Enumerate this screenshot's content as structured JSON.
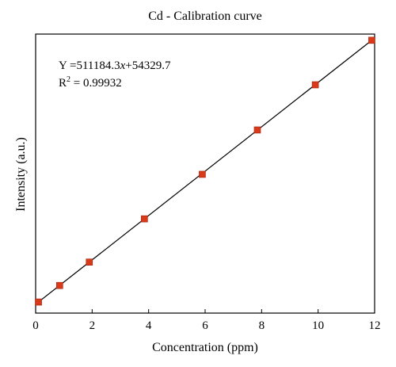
{
  "chart_data": {
    "type": "scatter",
    "title": "Cd - Calibration curve",
    "xlabel": "Concentration (ppm)",
    "ylabel": "Intensity (a.u.)",
    "xlim": [
      0,
      12
    ],
    "xticks": [
      "0",
      "2",
      "4",
      "6",
      "8",
      "10",
      "12"
    ],
    "x_tick_values": [
      0,
      2,
      4,
      6,
      8,
      10,
      12
    ],
    "y_tick_labels_shown": false,
    "grid": false,
    "series": [
      {
        "marker": "square",
        "color": "#d93a1a",
        "x": [
          0.1,
          0.85,
          1.9,
          3.85,
          5.9,
          7.85,
          9.9,
          11.9
        ],
        "y": [
          105000,
          486000,
          1025000,
          2022000,
          3048000,
          4070000,
          5111000,
          6137000
        ]
      }
    ],
    "fit_line": {
      "slope": 511184.3,
      "intercept": 54329.7,
      "x_range": [
        0,
        12
      ],
      "color": "#000000"
    },
    "annotations": {
      "equation_prefix": "Y =511184.3",
      "equation_var": "x",
      "equation_suffix": "+54329.7",
      "r2_label": "R",
      "r2_sup": "2",
      "r2_value": " = 0.99932"
    }
  }
}
